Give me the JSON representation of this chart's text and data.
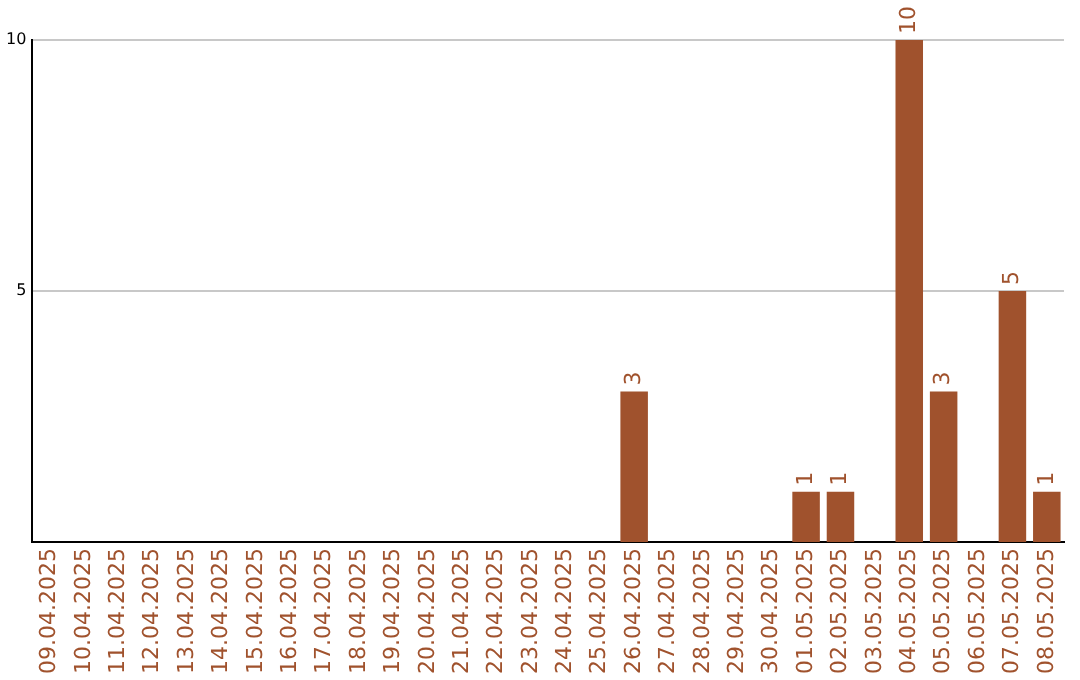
{
  "chart_data": {
    "type": "bar",
    "categories": [
      "09.04.2025",
      "10.04.2025",
      "11.04.2025",
      "12.04.2025",
      "13.04.2025",
      "14.04.2025",
      "15.04.2025",
      "16.04.2025",
      "17.04.2025",
      "18.04.2025",
      "19.04.2025",
      "20.04.2025",
      "21.04.2025",
      "22.04.2025",
      "23.04.2025",
      "24.04.2025",
      "25.04.2025",
      "26.04.2025",
      "27.04.2025",
      "28.04.2025",
      "29.04.2025",
      "30.04.2025",
      "01.05.2025",
      "02.05.2025",
      "03.05.2025",
      "04.05.2025",
      "05.05.2025",
      "06.05.2025",
      "07.05.2025",
      "08.05.2025"
    ],
    "values": [
      0,
      0,
      0,
      0,
      0,
      0,
      0,
      0,
      0,
      0,
      0,
      0,
      0,
      0,
      0,
      0,
      0,
      3,
      0,
      0,
      0,
      0,
      1,
      1,
      0,
      10,
      3,
      0,
      5,
      1
    ],
    "value_labels": [
      null,
      null,
      null,
      null,
      null,
      null,
      null,
      null,
      null,
      null,
      null,
      null,
      null,
      null,
      null,
      null,
      null,
      "3",
      null,
      null,
      null,
      null,
      "1",
      "1",
      null,
      "10",
      "3",
      null,
      "5",
      "1"
    ],
    "color": "#a0522d",
    "ylim": [
      0,
      10
    ],
    "yticks": [
      5,
      10
    ],
    "grid": "y",
    "legend": false
  }
}
